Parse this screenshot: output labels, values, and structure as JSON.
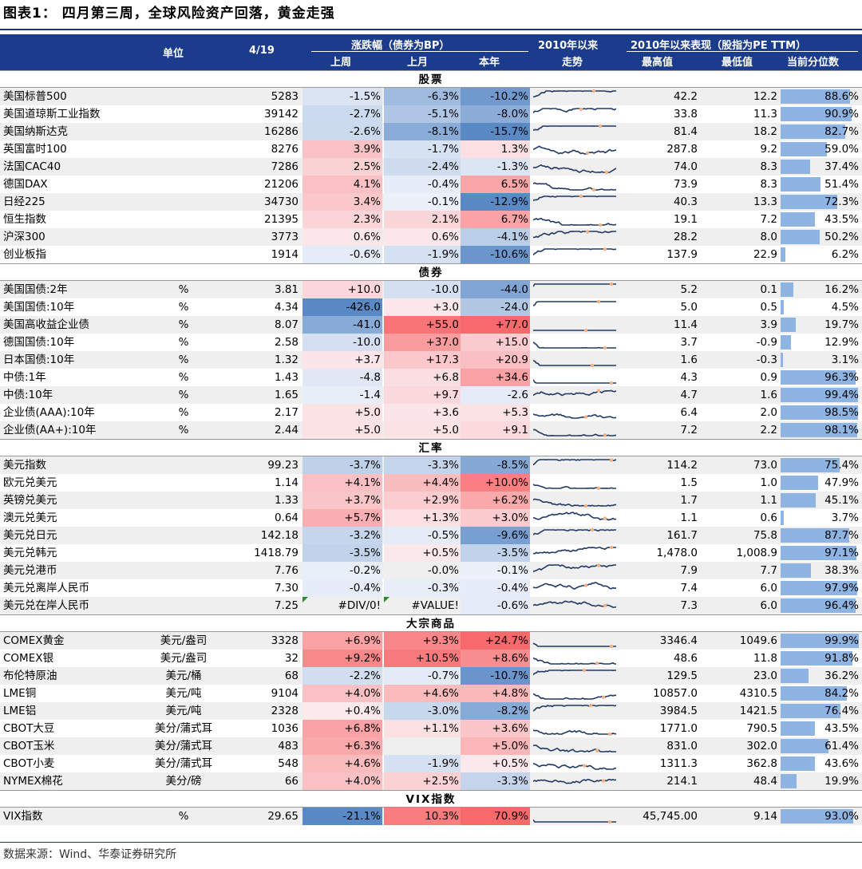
{
  "title": "图表1： 四月第三周，全球风险资产回落，黄金走强",
  "header": {
    "unit": "单位",
    "date": "4/19",
    "change_group": "涨跌幅（债券为BP）",
    "week": "上周",
    "month": "上月",
    "ytd": "本年",
    "trend_line1": "2010年以来",
    "trend_line2": "走势",
    "perf_group": "2010年以来表现（股指为PE TTM）",
    "high": "最高值",
    "low": "最低值",
    "percentile": "当前分位数"
  },
  "colors": {
    "header_bg": "#1b3b8c",
    "positive_strong": "#f8696b",
    "negative_strong": "#5a8ac6",
    "neutral": "#fcfcff",
    "percentile_bar": "#8db4e2",
    "sparkline": "#1f3864",
    "sparkline_marker": "#f4b183"
  },
  "table": {
    "rows": [
      {
        "section": "股票"
      },
      {
        "name": "美国标普500",
        "unit": "",
        "value": "5283",
        "week": "-1.5%",
        "month": "-6.3%",
        "ytd": "-10.2%",
        "w": -1.5,
        "m": -6.3,
        "y": -10.2,
        "high": "42.2",
        "low": "12.2",
        "pct_text": "88.6%",
        "pct": 88.6
      },
      {
        "name": "美国道琼斯工业指数",
        "unit": "",
        "value": "39142",
        "week": "-2.7%",
        "month": "-5.1%",
        "ytd": "-8.0%",
        "w": -2.7,
        "m": -5.1,
        "y": -8.0,
        "high": "33.8",
        "low": "11.3",
        "pct_text": "90.9%",
        "pct": 90.9
      },
      {
        "name": "美国纳斯达克",
        "unit": "",
        "value": "16286",
        "week": "-2.6%",
        "month": "-8.1%",
        "ytd": "-15.7%",
        "w": -2.6,
        "m": -8.1,
        "y": -15.7,
        "high": "81.4",
        "low": "18.2",
        "pct_text": "82.7%",
        "pct": 82.7
      },
      {
        "name": "英国富时100",
        "unit": "",
        "value": "8276",
        "week": "3.9%",
        "month": "-1.7%",
        "ytd": "1.3%",
        "w": 3.9,
        "m": -1.7,
        "y": 1.3,
        "high": "287.8",
        "low": "9.2",
        "pct_text": "59.0%",
        "pct": 59.0
      },
      {
        "name": "法国CAC40",
        "unit": "",
        "value": "7286",
        "week": "2.5%",
        "month": "-2.4%",
        "ytd": "-1.3%",
        "w": 2.5,
        "m": -2.4,
        "y": -1.3,
        "high": "74.0",
        "low": "8.3",
        "pct_text": "37.4%",
        "pct": 37.4
      },
      {
        "name": "德国DAX",
        "unit": "",
        "value": "21206",
        "week": "4.1%",
        "month": "-0.4%",
        "ytd": "6.5%",
        "w": 4.1,
        "m": -0.4,
        "y": 6.5,
        "high": "73.9",
        "low": "8.3",
        "pct_text": "51.4%",
        "pct": 51.4
      },
      {
        "name": "日经225",
        "unit": "",
        "value": "34730",
        "week": "3.4%",
        "month": "-0.1%",
        "ytd": "-12.9%",
        "w": 3.4,
        "m": -0.1,
        "y": -12.9,
        "high": "40.3",
        "low": "13.3",
        "pct_text": "72.3%",
        "pct": 72.3
      },
      {
        "name": "恒生指数",
        "unit": "",
        "value": "21395",
        "week": "2.3%",
        "month": "2.1%",
        "ytd": "6.7%",
        "w": 2.3,
        "m": 2.1,
        "y": 6.7,
        "high": "19.1",
        "low": "7.2",
        "pct_text": "43.5%",
        "pct": 43.5
      },
      {
        "name": "沪深300",
        "unit": "",
        "value": "3773",
        "week": "0.6%",
        "month": "0.6%",
        "ytd": "-4.1%",
        "w": 0.6,
        "m": 0.6,
        "y": -4.1,
        "high": "28.2",
        "low": "8.0",
        "pct_text": "50.2%",
        "pct": 50.2
      },
      {
        "name": "创业板指",
        "unit": "",
        "value": "1914",
        "week": "-0.6%",
        "month": "-1.9%",
        "ytd": "-10.6%",
        "w": -0.6,
        "m": -1.9,
        "y": -10.6,
        "high": "137.9",
        "low": "22.9",
        "pct_text": "6.2%",
        "pct": 6.2
      },
      {
        "section": "债券"
      },
      {
        "name": "美国国债:2年",
        "unit": "%",
        "value": "3.81",
        "week": "+10.0",
        "month": "-10.0",
        "ytd": "-44.0",
        "w": 10,
        "m": -10,
        "y": -44,
        "high": "5.2",
        "low": "0.1",
        "pct_text": "16.2%",
        "pct": 16.2
      },
      {
        "name": "美国国债:10年",
        "unit": "%",
        "value": "4.34",
        "week": "-426.0",
        "month": "+3.0",
        "ytd": "-24.0",
        "w": -426,
        "m": 3,
        "y": -24,
        "high": "5.0",
        "low": "0.5",
        "pct_text": "4.5%",
        "pct": 4.5
      },
      {
        "name": "美国高收益企业债",
        "unit": "%",
        "value": "8.07",
        "week": "-41.0",
        "month": "+55.0",
        "ytd": "+77.0",
        "w": -41,
        "m": 55,
        "y": 77,
        "high": "11.4",
        "low": "3.9",
        "pct_text": "19.7%",
        "pct": 19.7
      },
      {
        "name": "德国国债:10年",
        "unit": "%",
        "value": "2.58",
        "week": "-10.0",
        "month": "+37.0",
        "ytd": "+15.0",
        "w": -10,
        "m": 37,
        "y": 15,
        "high": "3.7",
        "low": "-0.9",
        "pct_text": "12.9%",
        "pct": 12.9
      },
      {
        "name": "日本国债:10年",
        "unit": "%",
        "value": "1.32",
        "week": "+3.7",
        "month": "+17.3",
        "ytd": "+20.9",
        "w": 3.7,
        "m": 17.3,
        "y": 20.9,
        "high": "1.6",
        "low": "-0.3",
        "pct_text": "3.1%",
        "pct": 3.1
      },
      {
        "name": "中债:1年",
        "unit": "%",
        "value": "1.43",
        "week": "-4.8",
        "month": "+6.8",
        "ytd": "+34.6",
        "w": -4.8,
        "m": 6.8,
        "y": 34.6,
        "high": "4.3",
        "low": "0.9",
        "pct_text": "96.3%",
        "pct": 96.3
      },
      {
        "name": "中债:10年",
        "unit": "%",
        "value": "1.65",
        "week": "-1.4",
        "month": "+9.7",
        "ytd": "-2.6",
        "w": -1.4,
        "m": 9.7,
        "y": -2.6,
        "high": "4.7",
        "low": "1.6",
        "pct_text": "99.4%",
        "pct": 99.4
      },
      {
        "name": "企业债(AAA):10年",
        "unit": "%",
        "value": "2.17",
        "week": "+5.0",
        "month": "+3.6",
        "ytd": "+5.3",
        "w": 5,
        "m": 3.6,
        "y": 5.3,
        "high": "6.4",
        "low": "2.0",
        "pct_text": "98.5%",
        "pct": 98.5
      },
      {
        "name": "企业债(AA+):10年",
        "unit": "%",
        "value": "2.44",
        "week": "+5.0",
        "month": "+5.0",
        "ytd": "+9.1",
        "w": 5,
        "m": 5,
        "y": 9.1,
        "high": "7.2",
        "low": "2.2",
        "pct_text": "98.1%",
        "pct": 98.1
      },
      {
        "section": "汇率"
      },
      {
        "name": "美元指数",
        "unit": "",
        "value": "99.23",
        "week": "-3.7%",
        "month": "-3.3%",
        "ytd": "-8.5%",
        "w": -3.7,
        "m": -3.3,
        "y": -8.5,
        "high": "114.2",
        "low": "73.0",
        "pct_text": "75.4%",
        "pct": 75.4
      },
      {
        "name": "欧元兑美元",
        "unit": "",
        "value": "1.14",
        "week": "+4.1%",
        "month": "+4.4%",
        "ytd": "+10.0%",
        "w": 4.1,
        "m": 4.4,
        "y": 10,
        "high": "1.5",
        "low": "1.0",
        "pct_text": "47.9%",
        "pct": 47.9
      },
      {
        "name": "英镑兑美元",
        "unit": "",
        "value": "1.33",
        "week": "+3.7%",
        "month": "+2.9%",
        "ytd": "+6.2%",
        "w": 3.7,
        "m": 2.9,
        "y": 6.2,
        "high": "1.7",
        "low": "1.1",
        "pct_text": "45.1%",
        "pct": 45.1
      },
      {
        "name": "澳元兑美元",
        "unit": "",
        "value": "0.64",
        "week": "+5.7%",
        "month": "+1.3%",
        "ytd": "+3.0%",
        "w": 5.7,
        "m": 1.3,
        "y": 3,
        "high": "1.1",
        "low": "0.6",
        "pct_text": "3.7%",
        "pct": 3.7
      },
      {
        "name": "美元兑日元",
        "unit": "",
        "value": "142.18",
        "week": "-3.2%",
        "month": "-0.5%",
        "ytd": "-9.6%",
        "w": -3.2,
        "m": -0.5,
        "y": -9.6,
        "high": "161.7",
        "low": "75.8",
        "pct_text": "87.7%",
        "pct": 87.7
      },
      {
        "name": "美元兑韩元",
        "unit": "",
        "value": "1418.79",
        "week": "-3.5%",
        "month": "+0.5%",
        "ytd": "-3.5%",
        "w": -3.5,
        "m": 0.5,
        "y": -3.5,
        "high": "1,478.0",
        "low": "1,008.9",
        "pct_text": "97.1%",
        "pct": 97.1
      },
      {
        "name": "美元兑港币",
        "unit": "",
        "value": "7.76",
        "week": "-0.2%",
        "month": "-0.0%",
        "ytd": "-0.1%",
        "w": -0.2,
        "m": 0,
        "y": -0.1,
        "high": "7.9",
        "low": "7.7",
        "pct_text": "38.3%",
        "pct": 38.3
      },
      {
        "name": "美元兑离岸人民币",
        "unit": "",
        "value": "7.30",
        "week": "-0.4%",
        "month": "-0.3%",
        "ytd": "-0.4%",
        "w": -0.4,
        "m": -0.3,
        "y": -0.4,
        "high": "7.4",
        "low": "6.0",
        "pct_text": "97.9%",
        "pct": 97.9
      },
      {
        "name": "美元兑在岸人民币",
        "unit": "",
        "value": "7.25",
        "week": "#DIV/0!",
        "month": "#VALUE!",
        "ytd": "-0.6%",
        "w": 0,
        "m": 0,
        "y": -0.6,
        "high": "7.3",
        "low": "6.0",
        "pct_text": "96.4%",
        "pct": 96.4,
        "err": true
      },
      {
        "section": "大宗商品"
      },
      {
        "name": "COMEX黄金",
        "unit": "美元/盎司",
        "value": "3328",
        "week": "+6.9%",
        "month": "+9.3%",
        "ytd": "+24.7%",
        "w": 6.9,
        "m": 9.3,
        "y": 24.7,
        "high": "3346.4",
        "low": "1049.6",
        "pct_text": "99.9%",
        "pct": 99.9
      },
      {
        "name": "COMEX银",
        "unit": "美元/盎司",
        "value": "32",
        "week": "+9.2%",
        "month": "+10.5%",
        "ytd": "+8.6%",
        "w": 9.2,
        "m": 10.5,
        "y": 8.6,
        "high": "48.6",
        "low": "11.8",
        "pct_text": "91.8%",
        "pct": 91.8
      },
      {
        "name": "布伦特原油",
        "unit": "美元/桶",
        "value": "68",
        "week": "-2.2%",
        "month": "-0.7%",
        "ytd": "-10.7%",
        "w": -2.2,
        "m": -0.7,
        "y": -10.7,
        "high": "129.5",
        "low": "23.0",
        "pct_text": "36.2%",
        "pct": 36.2
      },
      {
        "name": "LME铜",
        "unit": "美元/吨",
        "value": "9104",
        "week": "+4.0%",
        "month": "+4.6%",
        "ytd": "+4.8%",
        "w": 4,
        "m": 4.6,
        "y": 4.8,
        "high": "10857.0",
        "low": "4310.5",
        "pct_text": "84.2%",
        "pct": 84.2
      },
      {
        "name": "LME铝",
        "unit": "美元/吨",
        "value": "2328",
        "week": "+0.4%",
        "month": "-3.0%",
        "ytd": "-8.2%",
        "w": 0.4,
        "m": -3,
        "y": -8.2,
        "high": "3984.5",
        "low": "1421.5",
        "pct_text": "76.4%",
        "pct": 76.4
      },
      {
        "name": "CBOT大豆",
        "unit": "美分/蒲式耳",
        "value": "1036",
        "week": "+6.8%",
        "month": "+1.1%",
        "ytd": "+3.6%",
        "w": 6.8,
        "m": 1.1,
        "y": 3.6,
        "high": "1771.0",
        "low": "790.5",
        "pct_text": "43.5%",
        "pct": 43.5
      },
      {
        "name": "CBOT玉米",
        "unit": "美分/蒲式耳",
        "value": "483",
        "week": "+6.3%",
        "month": "",
        "ytd": "+5.0%",
        "w": 6.3,
        "m": 0,
        "y": 5,
        "high": "831.0",
        "low": "302.0",
        "pct_text": "61.4%",
        "pct": 61.4
      },
      {
        "name": "CBOT小麦",
        "unit": "美分/蒲式耳",
        "value": "548",
        "week": "+4.6%",
        "month": "-1.9%",
        "ytd": "+0.5%",
        "w": 4.6,
        "m": -1.9,
        "y": 0.5,
        "high": "1311.3",
        "low": "362.8",
        "pct_text": "43.6%",
        "pct": 43.6
      },
      {
        "name": "NYMEX棉花",
        "unit": "美分/磅",
        "value": "66",
        "week": "+4.0%",
        "month": "+2.5%",
        "ytd": "-3.3%",
        "w": 4,
        "m": 2.5,
        "y": -3.3,
        "high": "214.1",
        "low": "48.4",
        "pct_text": "19.9%",
        "pct": 19.9
      },
      {
        "section": "VIX指数"
      },
      {
        "name": "VIX指数",
        "unit": "%",
        "value": "29.65",
        "week": "-21.1%",
        "month": "10.3%",
        "ytd": "70.9%",
        "w": -21.1,
        "m": 10.3,
        "y": 70.9,
        "high": "45,745.00",
        "low": "9.14",
        "pct_text": "93.0%",
        "pct": 93.0
      }
    ]
  },
  "source": "数据来源：Wind、华泰证券研究所"
}
